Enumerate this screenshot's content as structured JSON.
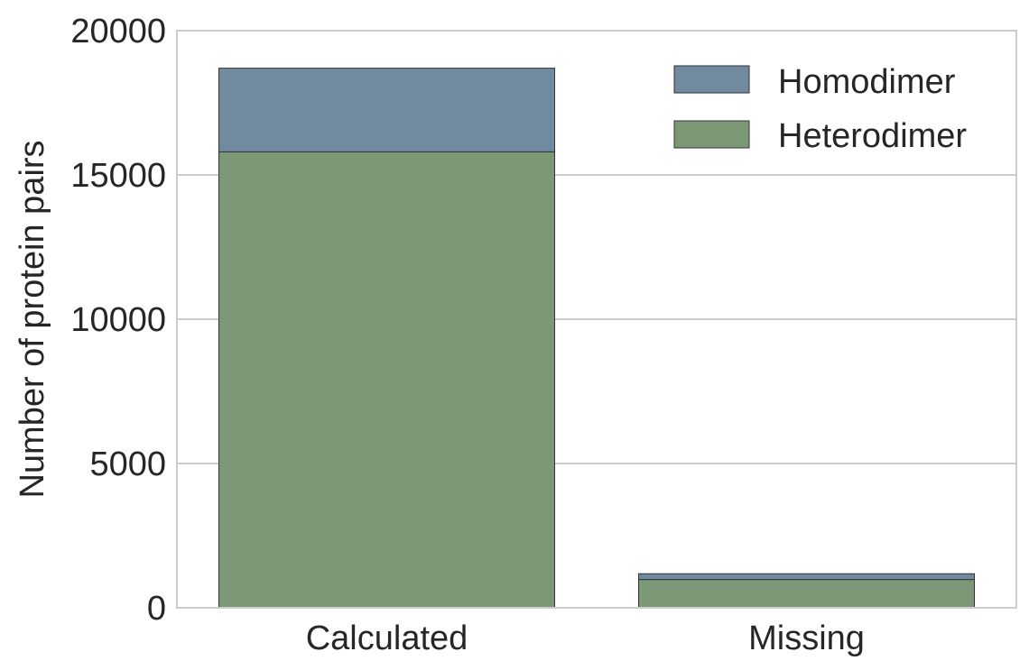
{
  "chart_data": {
    "type": "bar",
    "stacked": true,
    "categories": [
      "Calculated",
      "Missing"
    ],
    "series": [
      {
        "name": "Heterodimer",
        "values": [
          15800,
          980
        ],
        "color": "#7d9876"
      },
      {
        "name": "Homodimer",
        "values": [
          2900,
          200
        ],
        "color": "#728aa0"
      }
    ],
    "title": "",
    "xlabel": "",
    "ylabel": "Number of protein pairs",
    "ylim": [
      0,
      20000
    ],
    "yticks": [
      "0",
      "5000",
      "10000",
      "15000",
      "20000"
    ],
    "grid": true,
    "legend": {
      "position": "top-right",
      "entries": [
        "Homodimer",
        "Heterodimer"
      ]
    },
    "colors": {
      "grid": "#cccccc",
      "frame": "#cccccc",
      "edge": "#333333",
      "text": "#262626"
    }
  }
}
